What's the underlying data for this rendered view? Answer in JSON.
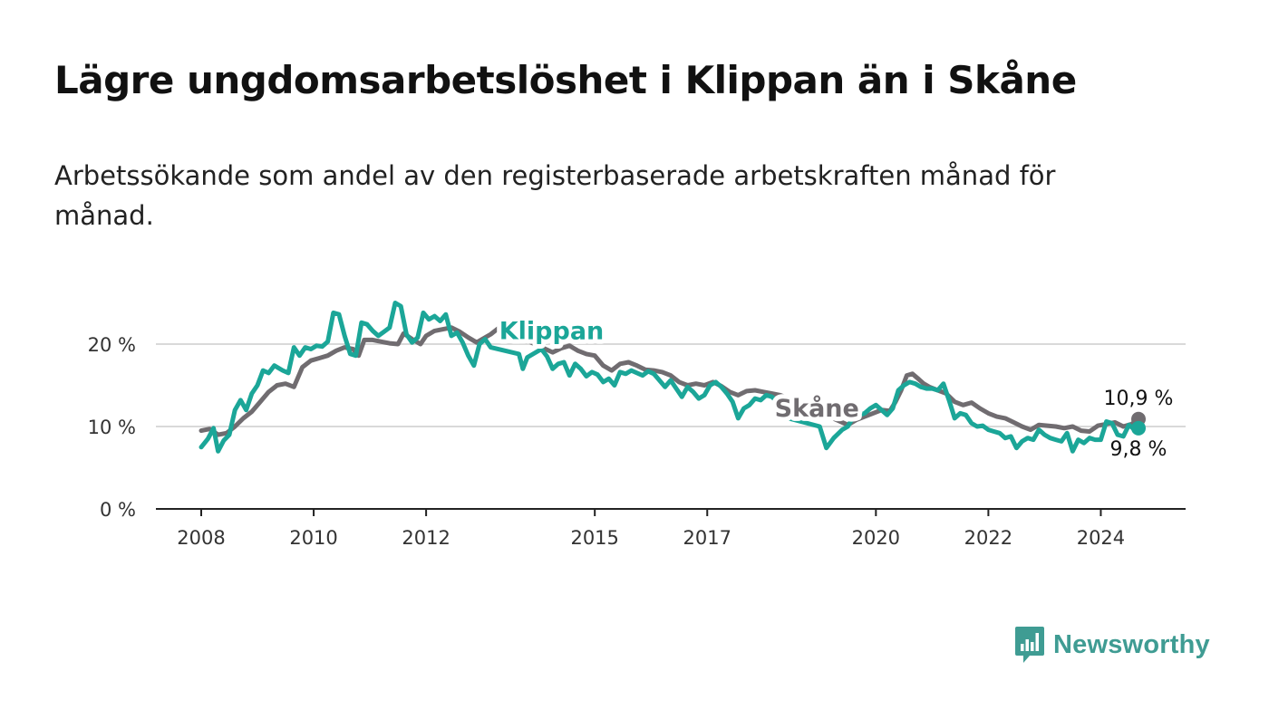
{
  "header": {
    "title": "Lägre ungdomsarbetslöshet i Klippan än i Skåne",
    "subtitle": "Arbetssökande som andel av den registerbaserade arbetskraften månad för månad."
  },
  "brand": {
    "name": "Newsworthy",
    "icon": "bar-chart-speech-bubble-icon",
    "color": "#3f9c93"
  },
  "chart_data": {
    "type": "line",
    "title": "",
    "xlabel": "",
    "ylabel": "",
    "xlim": [
      2008,
      2024.67
    ],
    "ylim": [
      0,
      20
    ],
    "yticks": [
      0,
      10,
      20
    ],
    "ytick_labels": [
      "0 %",
      "10 %",
      "20 %"
    ],
    "xticks": [
      2008,
      2010,
      2012,
      2015,
      2017,
      2020,
      2022,
      2024
    ],
    "xtick_labels": [
      "2008",
      "2010",
      "2012",
      "2015",
      "2017",
      "2020",
      "2022",
      "2024"
    ],
    "grid": true,
    "series": [
      {
        "name": "Skåne",
        "color": "#706c70",
        "end_label": "10,9 %",
        "points": [
          [
            2008.0,
            9.5
          ],
          [
            2008.15,
            9.7
          ],
          [
            2008.3,
            9.0
          ],
          [
            2008.45,
            9.2
          ],
          [
            2008.6,
            10.0
          ],
          [
            2008.75,
            11.0
          ],
          [
            2008.9,
            11.8
          ],
          [
            2009.05,
            13.0
          ],
          [
            2009.2,
            14.2
          ],
          [
            2009.35,
            15.0
          ],
          [
            2009.5,
            15.2
          ],
          [
            2009.65,
            14.8
          ],
          [
            2009.8,
            17.2
          ],
          [
            2009.95,
            18.0
          ],
          [
            2010.1,
            18.3
          ],
          [
            2010.25,
            18.6
          ],
          [
            2010.4,
            19.2
          ],
          [
            2010.55,
            19.6
          ],
          [
            2010.7,
            19.4
          ],
          [
            2010.8,
            18.6
          ],
          [
            2010.9,
            20.5
          ],
          [
            2011.05,
            20.5
          ],
          [
            2011.2,
            20.3
          ],
          [
            2011.35,
            20.1
          ],
          [
            2011.5,
            20.0
          ],
          [
            2011.6,
            21.3
          ],
          [
            2011.75,
            20.6
          ],
          [
            2011.9,
            20.0
          ],
          [
            2012.0,
            21.0
          ],
          [
            2012.15,
            21.6
          ],
          [
            2012.3,
            21.8
          ],
          [
            2012.45,
            22.0
          ],
          [
            2012.6,
            21.5
          ],
          [
            2012.75,
            20.8
          ],
          [
            2012.9,
            20.2
          ],
          [
            2013.0,
            20.6
          ],
          [
            2013.15,
            21.2
          ],
          [
            2013.3,
            22.0
          ],
          [
            2014.25,
            19.0
          ],
          [
            2014.4,
            19.5
          ],
          [
            2014.55,
            19.8
          ],
          [
            2014.7,
            19.2
          ],
          [
            2014.85,
            18.8
          ],
          [
            2015.0,
            18.6
          ],
          [
            2015.15,
            17.4
          ],
          [
            2015.3,
            16.8
          ],
          [
            2015.45,
            17.6
          ],
          [
            2015.6,
            17.8
          ],
          [
            2015.75,
            17.4
          ],
          [
            2015.9,
            16.9
          ],
          [
            2016.05,
            16.8
          ],
          [
            2016.2,
            16.6
          ],
          [
            2016.35,
            16.2
          ],
          [
            2016.5,
            15.4
          ],
          [
            2016.65,
            15.0
          ],
          [
            2016.8,
            15.2
          ],
          [
            2016.95,
            15.0
          ],
          [
            2017.1,
            15.4
          ],
          [
            2017.25,
            14.9
          ],
          [
            2017.4,
            14.2
          ],
          [
            2017.55,
            13.8
          ],
          [
            2017.7,
            14.3
          ],
          [
            2017.85,
            14.4
          ],
          [
            2018.0,
            14.2
          ],
          [
            2018.15,
            14.0
          ],
          [
            2018.3,
            13.8
          ],
          [
            2018.45,
            13.4
          ],
          [
            2019.5,
            10.2
          ],
          [
            2019.65,
            10.8
          ],
          [
            2019.95,
            11.6
          ],
          [
            2020.1,
            12.0
          ],
          [
            2020.25,
            11.9
          ],
          [
            2020.35,
            13.0
          ],
          [
            2020.45,
            14.4
          ],
          [
            2020.55,
            16.2
          ],
          [
            2020.65,
            16.4
          ],
          [
            2020.75,
            15.8
          ],
          [
            2020.85,
            15.2
          ],
          [
            2020.95,
            14.8
          ],
          [
            2021.1,
            14.4
          ],
          [
            2021.25,
            14.0
          ],
          [
            2021.4,
            13.0
          ],
          [
            2021.55,
            12.6
          ],
          [
            2021.7,
            12.9
          ],
          [
            2021.85,
            12.2
          ],
          [
            2022.0,
            11.6
          ],
          [
            2022.15,
            11.2
          ],
          [
            2022.3,
            11.0
          ],
          [
            2022.45,
            10.5
          ],
          [
            2022.6,
            10.0
          ],
          [
            2022.75,
            9.6
          ],
          [
            2022.9,
            10.2
          ],
          [
            2023.05,
            10.1
          ],
          [
            2023.2,
            10.0
          ],
          [
            2023.35,
            9.8
          ],
          [
            2023.5,
            10.0
          ],
          [
            2023.65,
            9.5
          ],
          [
            2023.8,
            9.4
          ],
          [
            2023.95,
            10.1
          ],
          [
            2024.1,
            10.3
          ],
          [
            2024.25,
            10.5
          ],
          [
            2024.4,
            10.0
          ],
          [
            2024.55,
            10.3
          ],
          [
            2024.67,
            10.9
          ]
        ]
      },
      {
        "name": "Klippan",
        "color": "#1ba698",
        "end_label": "9,8 %",
        "points": [
          [
            2008.0,
            7.5
          ],
          [
            2008.12,
            8.5
          ],
          [
            2008.22,
            9.8
          ],
          [
            2008.3,
            7.0
          ],
          [
            2008.4,
            8.3
          ],
          [
            2008.5,
            9.0
          ],
          [
            2008.6,
            12.0
          ],
          [
            2008.7,
            13.2
          ],
          [
            2008.8,
            12.0
          ],
          [
            2008.9,
            14.0
          ],
          [
            2009.0,
            15.0
          ],
          [
            2009.1,
            16.8
          ],
          [
            2009.2,
            16.5
          ],
          [
            2009.3,
            17.4
          ],
          [
            2009.45,
            16.8
          ],
          [
            2009.55,
            16.5
          ],
          [
            2009.65,
            19.6
          ],
          [
            2009.75,
            18.6
          ],
          [
            2009.85,
            19.6
          ],
          [
            2009.95,
            19.4
          ],
          [
            2010.05,
            19.8
          ],
          [
            2010.15,
            19.7
          ],
          [
            2010.25,
            20.3
          ],
          [
            2010.35,
            23.8
          ],
          [
            2010.45,
            23.6
          ],
          [
            2010.55,
            21.0
          ],
          [
            2010.65,
            18.8
          ],
          [
            2010.75,
            18.6
          ],
          [
            2010.85,
            22.6
          ],
          [
            2010.95,
            22.4
          ],
          [
            2011.05,
            21.6
          ],
          [
            2011.15,
            21.0
          ],
          [
            2011.25,
            21.5
          ],
          [
            2011.35,
            22.0
          ],
          [
            2011.45,
            25.0
          ],
          [
            2011.55,
            24.6
          ],
          [
            2011.65,
            21.2
          ],
          [
            2011.75,
            20.2
          ],
          [
            2011.85,
            20.8
          ],
          [
            2011.95,
            23.8
          ],
          [
            2012.05,
            23.0
          ],
          [
            2012.15,
            23.4
          ],
          [
            2012.25,
            22.8
          ],
          [
            2012.35,
            23.6
          ],
          [
            2012.45,
            21.0
          ],
          [
            2012.55,
            21.4
          ],
          [
            2012.65,
            20.2
          ],
          [
            2012.75,
            18.6
          ],
          [
            2012.85,
            17.4
          ],
          [
            2012.95,
            20.0
          ],
          [
            2013.05,
            20.6
          ],
          [
            2013.15,
            19.6
          ],
          [
            2013.65,
            18.8
          ],
          [
            2013.72,
            17.0
          ],
          [
            2013.8,
            18.4
          ],
          [
            2014.05,
            19.4
          ],
          [
            2014.15,
            18.5
          ],
          [
            2014.25,
            17.0
          ],
          [
            2014.35,
            17.6
          ],
          [
            2014.45,
            17.8
          ],
          [
            2014.55,
            16.2
          ],
          [
            2014.65,
            17.6
          ],
          [
            2014.75,
            17.0
          ],
          [
            2014.85,
            16.1
          ],
          [
            2014.95,
            16.6
          ],
          [
            2015.05,
            16.3
          ],
          [
            2015.15,
            15.4
          ],
          [
            2015.25,
            15.8
          ],
          [
            2015.35,
            15.0
          ],
          [
            2015.45,
            16.6
          ],
          [
            2015.55,
            16.4
          ],
          [
            2015.65,
            16.8
          ],
          [
            2015.75,
            16.5
          ],
          [
            2015.85,
            16.2
          ],
          [
            2015.95,
            16.7
          ],
          [
            2016.05,
            16.4
          ],
          [
            2016.15,
            15.6
          ],
          [
            2016.25,
            14.8
          ],
          [
            2016.35,
            15.6
          ],
          [
            2016.45,
            14.6
          ],
          [
            2016.55,
            13.6
          ],
          [
            2016.65,
            14.8
          ],
          [
            2016.75,
            14.2
          ],
          [
            2016.85,
            13.4
          ],
          [
            2016.95,
            13.8
          ],
          [
            2017.05,
            15.0
          ],
          [
            2017.15,
            15.4
          ],
          [
            2017.25,
            14.8
          ],
          [
            2017.35,
            14.0
          ],
          [
            2017.45,
            13.0
          ],
          [
            2017.55,
            11.0
          ],
          [
            2017.65,
            12.2
          ],
          [
            2017.75,
            12.6
          ],
          [
            2017.85,
            13.4
          ],
          [
            2017.95,
            13.2
          ],
          [
            2018.05,
            13.8
          ],
          [
            2018.15,
            13.6
          ],
          [
            2018.25,
            13.0
          ],
          [
            2018.35,
            12.0
          ],
          [
            2018.45,
            11.0
          ],
          [
            2019.0,
            10.0
          ],
          [
            2019.12,
            7.4
          ],
          [
            2019.25,
            8.6
          ],
          [
            2019.4,
            9.6
          ],
          [
            2019.5,
            10.0
          ],
          [
            2019.6,
            11.2
          ],
          [
            2019.7,
            11.4
          ],
          [
            2019.8,
            11.6
          ],
          [
            2019.9,
            12.2
          ],
          [
            2020.0,
            12.6
          ],
          [
            2020.1,
            12.0
          ],
          [
            2020.2,
            11.4
          ],
          [
            2020.3,
            12.2
          ],
          [
            2020.4,
            14.4
          ],
          [
            2020.5,
            15.0
          ],
          [
            2020.6,
            15.4
          ],
          [
            2020.7,
            15.2
          ],
          [
            2020.8,
            14.8
          ],
          [
            2020.9,
            14.6
          ],
          [
            2021.0,
            14.6
          ],
          [
            2021.1,
            14.4
          ],
          [
            2021.2,
            15.2
          ],
          [
            2021.3,
            13.2
          ],
          [
            2021.4,
            11.0
          ],
          [
            2021.5,
            11.6
          ],
          [
            2021.6,
            11.4
          ],
          [
            2021.7,
            10.4
          ],
          [
            2021.8,
            10.0
          ],
          [
            2021.9,
            10.1
          ],
          [
            2022.0,
            9.6
          ],
          [
            2022.1,
            9.4
          ],
          [
            2022.2,
            9.2
          ],
          [
            2022.3,
            8.6
          ],
          [
            2022.4,
            8.8
          ],
          [
            2022.5,
            7.4
          ],
          [
            2022.6,
            8.2
          ],
          [
            2022.7,
            8.6
          ],
          [
            2022.8,
            8.4
          ],
          [
            2022.9,
            9.6
          ],
          [
            2023.0,
            9.0
          ],
          [
            2023.1,
            8.6
          ],
          [
            2023.2,
            8.4
          ],
          [
            2023.3,
            8.2
          ],
          [
            2023.4,
            9.2
          ],
          [
            2023.5,
            7.0
          ],
          [
            2023.6,
            8.4
          ],
          [
            2023.7,
            8.0
          ],
          [
            2023.8,
            8.6
          ],
          [
            2023.9,
            8.4
          ],
          [
            2024.0,
            8.4
          ],
          [
            2024.1,
            10.6
          ],
          [
            2024.2,
            10.4
          ],
          [
            2024.3,
            9.0
          ],
          [
            2024.4,
            8.8
          ],
          [
            2024.5,
            10.2
          ],
          [
            2024.6,
            9.6
          ],
          [
            2024.67,
            9.8
          ]
        ]
      }
    ]
  }
}
